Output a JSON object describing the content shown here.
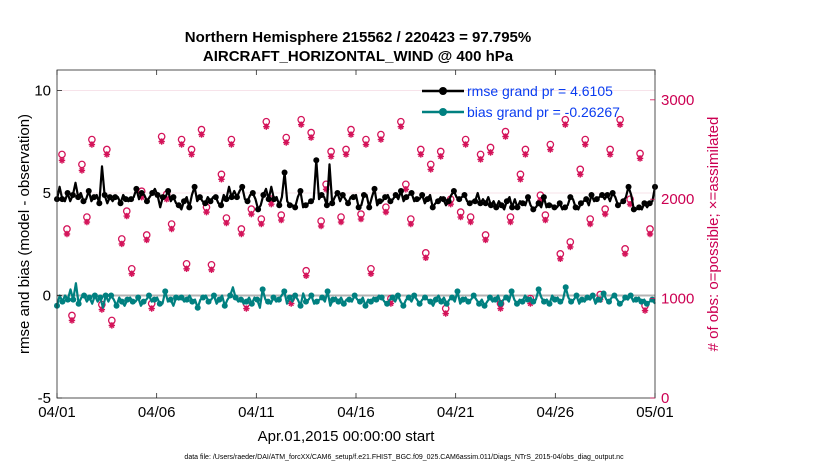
{
  "chart_data": {
    "type": "line",
    "title_line1": "Northern Hemisphere 215562 / 220423 = 97.795%",
    "title_line2": "AIRCRAFT_HORIZONTAL_WIND @ 400 hPa",
    "xlabel": "Apr.01,2015 00:00:00 start",
    "ylabel": "rmse and bias (model - observation)",
    "y2label": "# of obs: o=possible; ×=assimilated",
    "footnote": "data file: /Users/raeder/DAI/ATM_forcXX/CAM6_setup/f.e21.FHIST_BGC.f09_025.CAM6assim.011/Diags_NTrS_2015-04/obs_diag_output.nc",
    "x_ticks": [
      "04/01",
      "04/06",
      "04/11",
      "04/16",
      "04/21",
      "04/26",
      "05/01"
    ],
    "xlim": [
      0,
      30
    ],
    "ylim": [
      -5,
      11
    ],
    "y_ticks": [
      "-5",
      "0",
      "5",
      "10"
    ],
    "y_tick_values": [
      -5,
      0,
      5,
      10
    ],
    "y2lim": [
      0,
      3300
    ],
    "y2_ticks": [
      "0",
      "1000",
      "2000",
      "3000"
    ],
    "y2_tick_values": [
      0,
      1000,
      2000,
      3000
    ],
    "colors": {
      "rmse": "#000000",
      "bias": "#008080",
      "obs": "#d4145a",
      "zero_line": "#b3b3b3",
      "legend_text": "#0a3cf0"
    },
    "series": [
      {
        "name": "rmse grand pr = 4.6105",
        "values": [
          4.7,
          5.3,
          4.7,
          4.6,
          5.0,
          4.6,
          4.9,
          5.5,
          4.8,
          5.0,
          4.6,
          4.7,
          5.1,
          4.6,
          4.8,
          4.9,
          4.5,
          6.3,
          4.9,
          4.5,
          4.8,
          4.6,
          4.8,
          4.8,
          4.5,
          4.9,
          4.7,
          4.6,
          4.7,
          4.8,
          5.2,
          4.7,
          5.0,
          4.9,
          4.6,
          4.8,
          5.0,
          5.2,
          4.9,
          4.3,
          4.8,
          4.8,
          5.1,
          4.6,
          4.8,
          4.5,
          4.4,
          4.2,
          4.6,
          4.8,
          4.3,
          4.9,
          5.3,
          4.6,
          4.8,
          4.6,
          4.5,
          4.8,
          4.6,
          4.8,
          4.8,
          4.5,
          4.4,
          4.9,
          4.7,
          5.3,
          4.8,
          5.1,
          4.8,
          5.1,
          5.3,
          4.7,
          4.6,
          4.9,
          5.0,
          4.7,
          4.2,
          4.4,
          4.9,
          5.2,
          4.7,
          5.3,
          4.7,
          4.8,
          4.4,
          4.8,
          6.0,
          4.6,
          4.4,
          4.4,
          4.3,
          4.8,
          5.1,
          4.3,
          4.4,
          4.5,
          4.6,
          4.7,
          6.6,
          4.7,
          4.9,
          4.8,
          4.4,
          6.4,
          4.5,
          4.8,
          5.0,
          4.6,
          4.9,
          4.7,
          4.5,
          4.8,
          4.8,
          4.9,
          4.3,
          4.4,
          4.9,
          4.9,
          4.3,
          4.8,
          5.2,
          4.4,
          4.6,
          4.6,
          4.8,
          4.9,
          4.6,
          4.7,
          4.9,
          4.7,
          5.1,
          4.6,
          4.8,
          4.9,
          5.0,
          4.6,
          4.7,
          4.7,
          4.9,
          4.5,
          4.7,
          4.9,
          4.3,
          4.5,
          4.6,
          4.8,
          4.7,
          4.4,
          4.6,
          4.9,
          5.1,
          4.8,
          4.7,
          4.8,
          4.9,
          4.6,
          4.5,
          4.6,
          4.6,
          5.0,
          4.5,
          4.7,
          4.5,
          4.8,
          4.4,
          4.6,
          4.3,
          4.6,
          4.4,
          4.2,
          4.6,
          4.8,
          4.3,
          4.7,
          4.3,
          4.6,
          4.5,
          4.4,
          4.8,
          4.4,
          4.2,
          4.3,
          4.5,
          4.3,
          4.8,
          4.3,
          4.4,
          4.4,
          4.3,
          4.3,
          4.5,
          4.2,
          4.3,
          4.4,
          4.8,
          4.7,
          4.3,
          4.2,
          4.5,
          4.6,
          4.7,
          4.4,
          4.9,
          4.6,
          4.7,
          4.8,
          4.9,
          4.7,
          4.9,
          4.6,
          5.0,
          4.8,
          4.4,
          4.5,
          4.6,
          4.8,
          5.3,
          4.9,
          4.2,
          4.2,
          4.3,
          4.2,
          4.5,
          4.3,
          4.5,
          4.6,
          5.3
        ]
      },
      {
        "name": "bias grand pr = -0.26267",
        "values": [
          -0.5,
          0.0,
          -0.3,
          0.0,
          -0.2,
          0.3,
          -0.2,
          0.6,
          -0.4,
          -0.1,
          0.0,
          -0.3,
          -0.1,
          -0.4,
          0.0,
          -0.3,
          -0.1,
          -0.6,
          0.0,
          -0.3,
          0.0,
          -0.2,
          -0.5,
          -0.1,
          -0.3,
          -0.5,
          -0.2,
          -0.1,
          -0.3,
          -0.3,
          -0.1,
          -0.5,
          -0.3,
          -0.2,
          0.0,
          -0.3,
          -0.2,
          -0.1,
          -0.4,
          -0.4,
          0.2,
          -0.3,
          -0.2,
          -0.5,
          -0.1,
          -0.2,
          -0.1,
          -0.3,
          -0.2,
          0.0,
          -0.3,
          -0.2,
          -0.6,
          -0.2,
          -0.1,
          0.0,
          -0.3,
          -0.2,
          0.0,
          -0.4,
          -0.2,
          0.0,
          -0.5,
          -0.2,
          0.0,
          0.4,
          -0.1,
          -0.3,
          -0.2,
          -0.4,
          -0.3,
          -0.1,
          -0.4,
          -0.1,
          -0.2,
          -0.6,
          0.3,
          -0.2,
          -0.3,
          -0.4,
          -0.1,
          -0.3,
          -0.2,
          0.0,
          0.2,
          -0.4,
          -0.1,
          -0.3,
          0.0,
          -0.2,
          -0.5,
          0.1,
          -0.3,
          -0.2,
          0.0,
          -0.4,
          -0.3,
          -0.2,
          -0.1,
          -0.3,
          0.2,
          -0.5,
          -0.2,
          -0.1,
          -0.3,
          -0.1,
          -0.4,
          -0.2,
          -0.2,
          -0.3,
          0.0,
          -0.2,
          -0.3,
          -0.1,
          -0.5,
          -0.2,
          -0.3,
          -0.1,
          -0.2,
          0.0,
          -0.1,
          -0.3,
          -0.4,
          -0.2,
          -0.1,
          -0.3,
          0.0,
          -0.3,
          -0.5,
          -0.2,
          -0.1,
          -0.3,
          0.0,
          -0.2,
          -0.4,
          -0.2,
          -0.1,
          -0.2,
          -0.3,
          -0.5,
          -0.2,
          0.0,
          -0.3,
          -0.1,
          -0.4,
          -0.2,
          -0.1,
          -0.3,
          0.2,
          -0.4,
          -0.2,
          -0.1,
          -0.3,
          -0.2,
          0.0,
          -0.2,
          -0.4,
          -0.2,
          -0.5,
          -0.3,
          -0.1,
          -0.3,
          -0.2,
          0.0,
          -0.4,
          -0.2,
          -0.1,
          -0.3,
          0.2,
          -0.2,
          -0.4,
          -0.2,
          -0.3,
          0.0,
          -0.2,
          -0.1,
          -0.3,
          -0.2,
          0.3,
          -0.1,
          -0.3,
          -0.2,
          -0.4,
          0.0,
          -0.2,
          -0.1,
          -0.3,
          -0.2,
          0.4,
          -0.1,
          -0.3,
          -0.2,
          0.0,
          -0.4,
          -0.2,
          -0.3,
          -0.1,
          -0.2,
          0.0,
          -0.4,
          -0.2,
          -0.3,
          0.1,
          -0.2,
          -0.3,
          -0.1,
          0.0,
          -0.2,
          -0.4,
          -0.3,
          -0.1,
          -0.2,
          0.0,
          -0.3,
          -0.2,
          -0.1,
          -0.3,
          -0.2,
          -0.4,
          -0.3,
          -0.2,
          -0.4
        ]
      }
    ],
    "obs_times": [
      0.25,
      0.5,
      0.75,
      1.25,
      1.5,
      1.75,
      2.25,
      2.5,
      2.75,
      3.25,
      3.5,
      3.75,
      4.25,
      4.5,
      4.75,
      5.25,
      5.5,
      5.75,
      6.25,
      6.5,
      6.75,
      7.25,
      7.5,
      7.75,
      8.25,
      8.5,
      8.75,
      9.25,
      9.5,
      9.75,
      10.25,
      10.5,
      10.75,
      11.25,
      11.5,
      11.75,
      12.25,
      12.5,
      12.75,
      13.25,
      13.5,
      13.75,
      14.25,
      14.5,
      14.75,
      15.25,
      15.5,
      15.75,
      16.25,
      16.5,
      16.75,
      17.25,
      17.5,
      17.75,
      18.25,
      18.5,
      18.75,
      19.25,
      19.5,
      19.75,
      20.25,
      20.5,
      20.75,
      21.25,
      21.5,
      21.75,
      22.25,
      22.5,
      22.75,
      23.25,
      23.5,
      23.75,
      24.25,
      24.5,
      24.75,
      25.25,
      25.5,
      25.75,
      26.25,
      26.5,
      26.75,
      27.25,
      27.5,
      27.75,
      28.25,
      28.5,
      28.75,
      29.25,
      29.5,
      29.75
    ],
    "obs_possible": [
      2450,
      1700,
      830,
      2350,
      1820,
      2600,
      940,
      2500,
      780,
      1600,
      1880,
      1300,
      2080,
      1640,
      950,
      2630,
      2050,
      1750,
      2600,
      1350,
      2500,
      2700,
      1920,
      1340,
      2250,
      1810,
      2600,
      1700,
      950,
      1900,
      1800,
      2780,
      2000,
      1840,
      2620,
      1000,
      2800,
      1280,
      2670,
      1780,
      2150,
      2480,
      1820,
      2500,
      2700,
      1850,
      2600,
      1300,
      2650,
      1920,
      1000,
      2780,
      2150,
      1800,
      2500,
      1460,
      2350,
      2480,
      900,
      2000,
      1870,
      2600,
      1820,
      2450,
      1640,
      2520,
      950,
      2680,
      1820,
      2250,
      2500,
      1000,
      2040,
      1840,
      2550,
      1450,
      2800,
      1570,
      2300,
      2600,
      1800,
      1040,
      1900,
      2500,
      2800,
      1500,
      2000,
      2460,
      930,
      1700
    ],
    "obs_assimilated": [
      2390,
      1650,
      780,
      2290,
      1770,
      2550,
      890,
      2450,
      730,
      1550,
      1830,
      1250,
      2020,
      1590,
      900,
      2580,
      2000,
      1700,
      2550,
      1300,
      2450,
      2650,
      1870,
      1290,
      2200,
      1760,
      2550,
      1650,
      900,
      1850,
      1750,
      2730,
      1950,
      1790,
      2570,
      950,
      2750,
      1230,
      2620,
      1730,
      2100,
      2430,
      1770,
      2450,
      2650,
      1800,
      2550,
      1250,
      2600,
      1870,
      950,
      2730,
      2100,
      1750,
      2450,
      1410,
      2300,
      2430,
      850,
      1950,
      1820,
      2550,
      1770,
      2400,
      1590,
      2470,
      900,
      2630,
      1770,
      2200,
      2450,
      950,
      1990,
      1790,
      2500,
      1400,
      2750,
      1520,
      2250,
      2550,
      1750,
      990,
      1850,
      2450,
      2750,
      1450,
      1950,
      2410,
      880,
      1650
    ]
  }
}
